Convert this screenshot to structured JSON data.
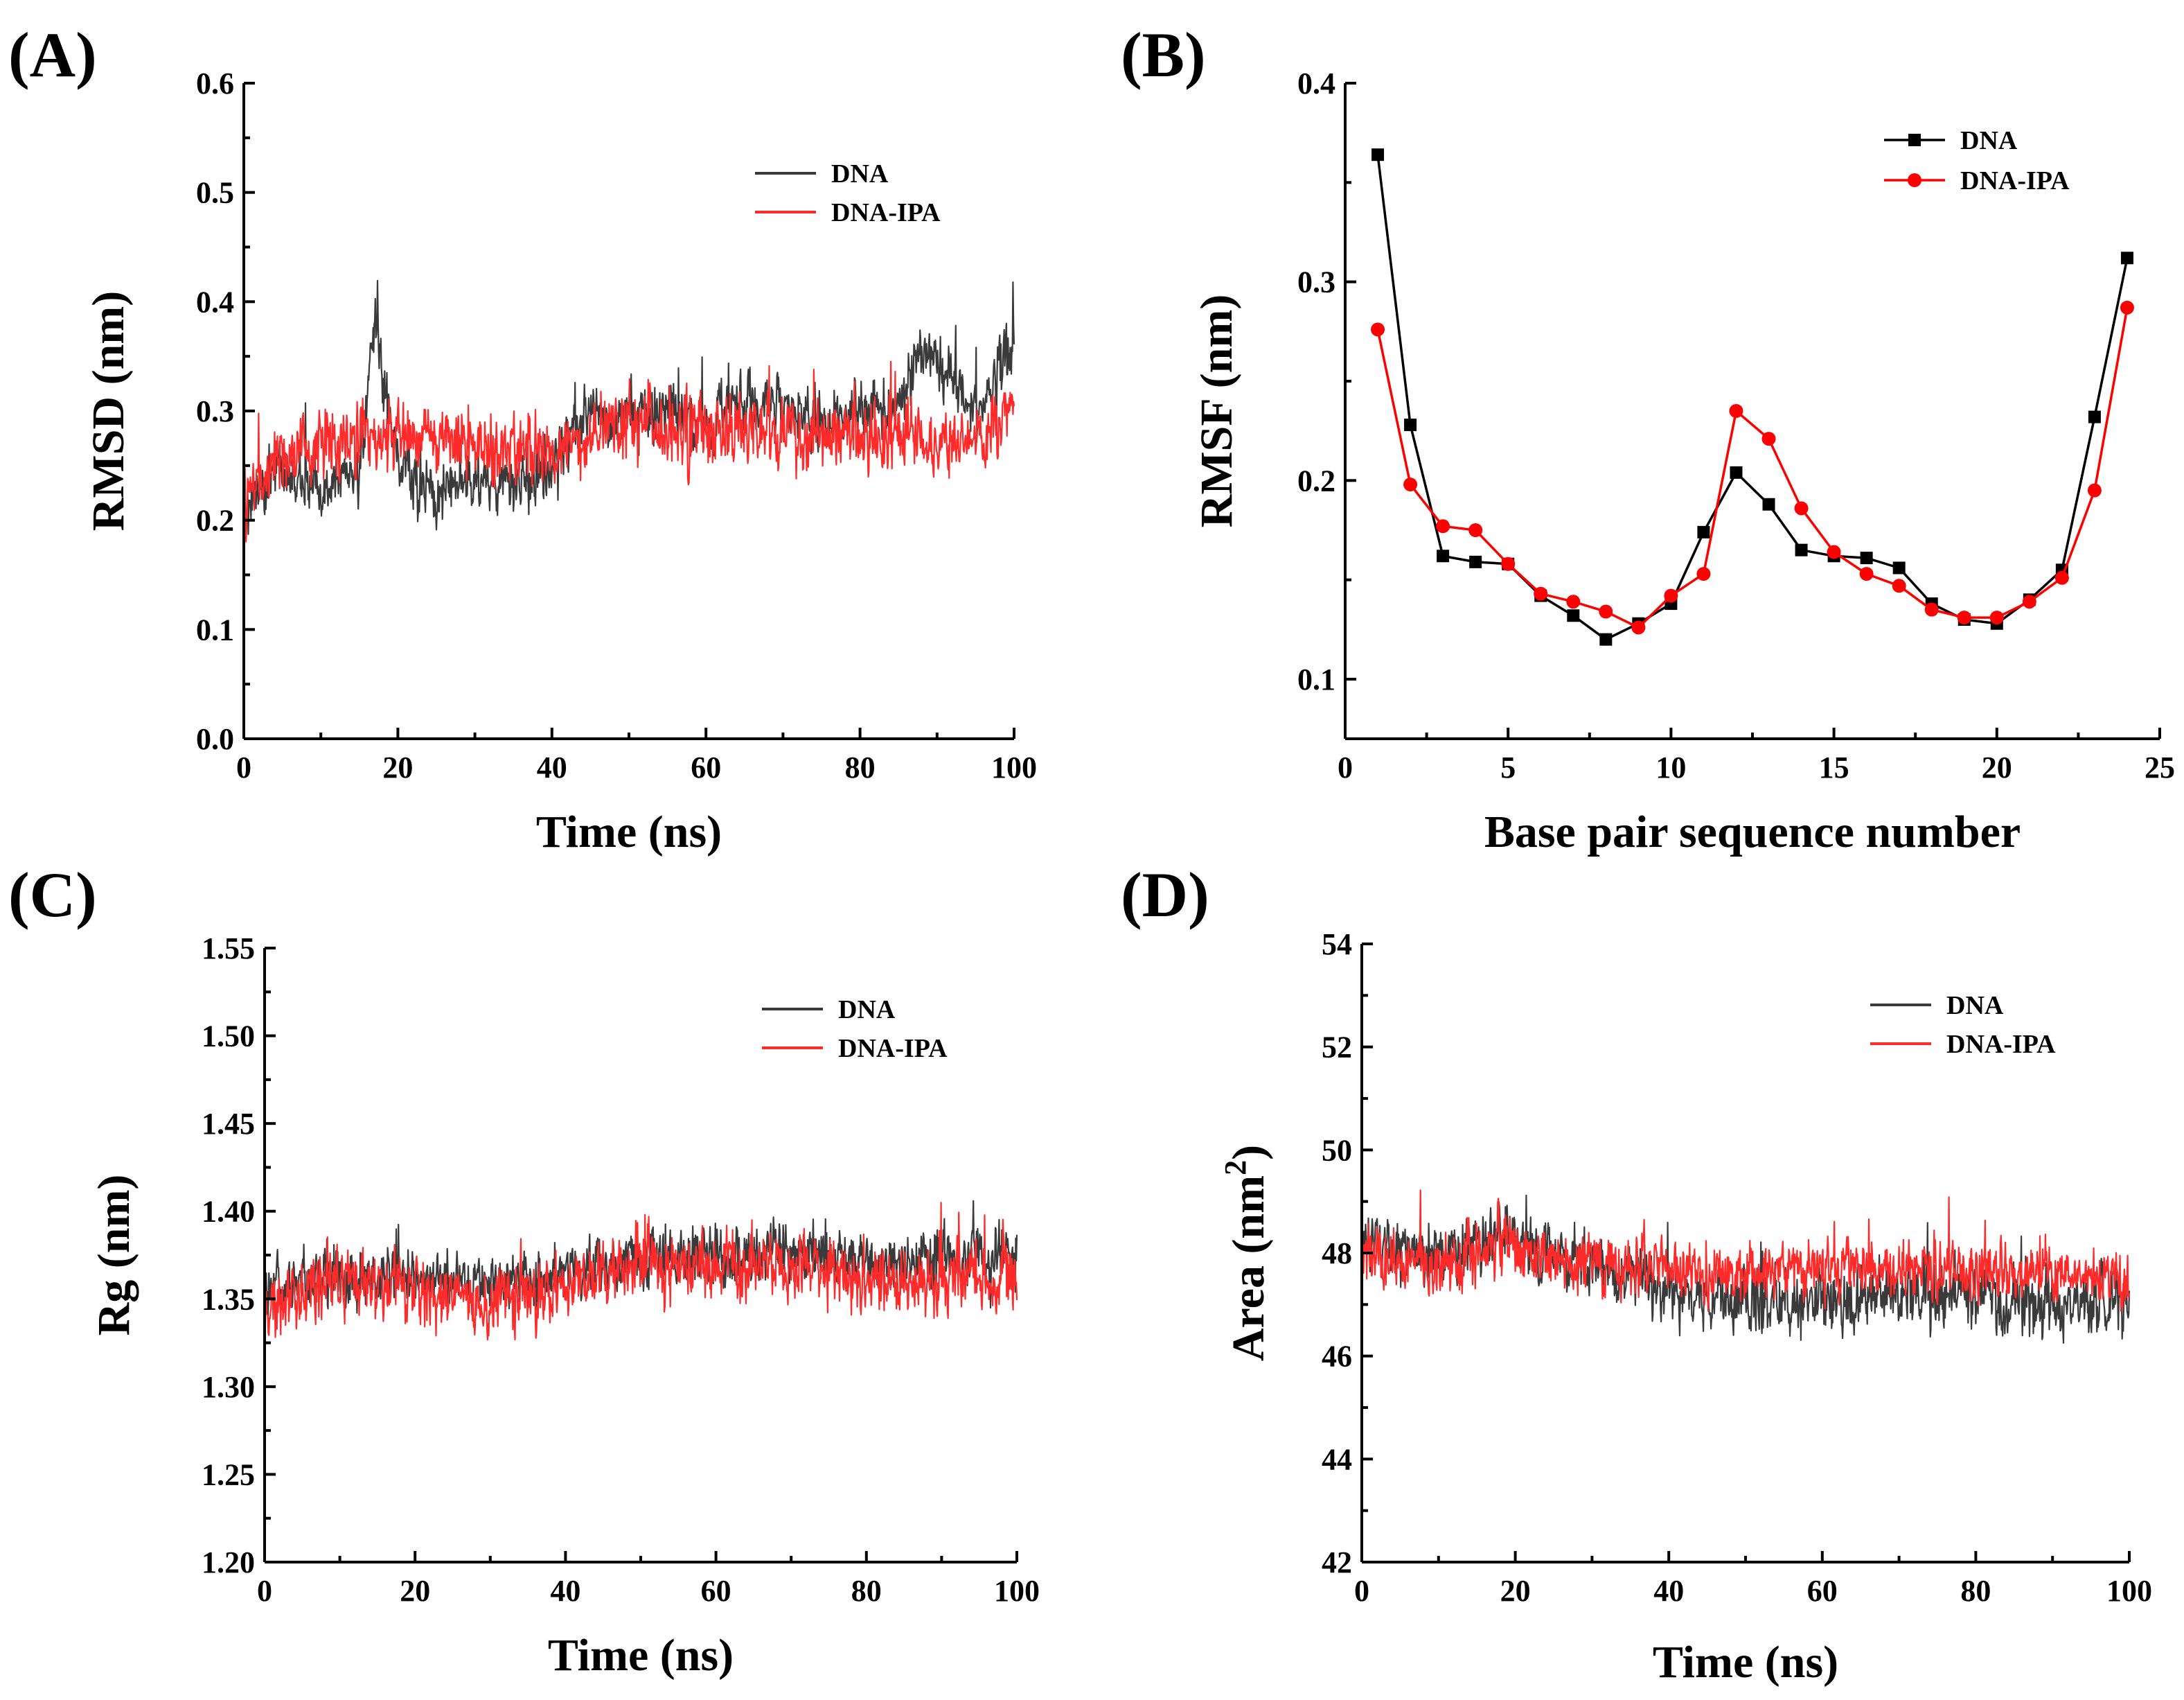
{
  "colors": {
    "dna": "#3a3a3a",
    "dna_ipa": "#ff2a2a"
  },
  "chart_data": [
    {
      "id": "A",
      "panel_label": "(A)",
      "type": "line",
      "xlabel": "Time (ns)",
      "ylabel": "RMSD (nm)",
      "ylabel_sup": "",
      "xlim": [
        0,
        100
      ],
      "ylim": [
        0.0,
        0.6
      ],
      "xticks": [
        0,
        20,
        40,
        60,
        80,
        100
      ],
      "xtick_labels": [
        "0",
        "20",
        "40",
        "60",
        "80",
        "100"
      ],
      "yticks": [
        0.0,
        0.1,
        0.2,
        0.3,
        0.4,
        0.5,
        0.6
      ],
      "ytick_labels": [
        "0.0",
        "0.1",
        "0.2",
        "0.3",
        "0.4",
        "0.5",
        "0.6"
      ],
      "legend": [
        "DNA",
        "DNA-IPA"
      ],
      "legend_position": "top-right",
      "series": [
        {
          "name": "DNA",
          "color": "#3a3a3a",
          "x": [
            0,
            5,
            10,
            15,
            17,
            20,
            25,
            30,
            35,
            40,
            45,
            50,
            55,
            60,
            65,
            70,
            75,
            80,
            85,
            88,
            90,
            95,
            100
          ],
          "values": [
            0.21,
            0.25,
            0.23,
            0.24,
            0.38,
            0.25,
            0.22,
            0.24,
            0.23,
            0.25,
            0.3,
            0.29,
            0.3,
            0.29,
            0.31,
            0.3,
            0.29,
            0.3,
            0.31,
            0.36,
            0.34,
            0.3,
            0.36
          ],
          "noise": [
            0.05,
            0.05,
            0.05,
            0.05,
            0.06,
            0.05,
            0.05,
            0.05,
            0.05,
            0.05,
            0.05,
            0.05,
            0.05,
            0.05,
            0.05,
            0.05,
            0.05,
            0.05,
            0.05,
            0.06,
            0.05,
            0.05,
            0.06
          ]
        },
        {
          "name": "DNA-IPA",
          "color": "#ff2a2a",
          "x": [
            0,
            5,
            10,
            20,
            30,
            40,
            45,
            50,
            60,
            70,
            80,
            90,
            95,
            100
          ],
          "values": [
            0.22,
            0.26,
            0.27,
            0.28,
            0.27,
            0.26,
            0.28,
            0.29,
            0.28,
            0.28,
            0.28,
            0.27,
            0.27,
            0.31
          ],
          "noise": [
            0.06,
            0.06,
            0.06,
            0.06,
            0.06,
            0.06,
            0.06,
            0.06,
            0.06,
            0.06,
            0.06,
            0.05,
            0.05,
            0.06
          ]
        }
      ]
    },
    {
      "id": "B",
      "panel_label": "(B)",
      "type": "line",
      "xlabel": "Base pair sequence number",
      "ylabel": "RMSF (nm)",
      "ylabel_sup": "",
      "xlim": [
        0,
        25
      ],
      "ylim": [
        0.07,
        0.4
      ],
      "xticks": [
        0,
        5,
        10,
        15,
        20,
        25
      ],
      "xtick_labels": [
        "0",
        "5",
        "10",
        "15",
        "20",
        "25"
      ],
      "yticks": [
        0.1,
        0.2,
        0.3,
        0.4
      ],
      "ytick_labels": [
        "0.1",
        "0.2",
        "0.3",
        "0.4"
      ],
      "legend": [
        "DNA",
        "DNA-IPA"
      ],
      "legend_position": "top-right",
      "series": [
        {
          "name": "DNA",
          "marker": "square",
          "color": "#000000",
          "x": [
            1,
            2,
            3,
            4,
            5,
            6,
            7,
            8,
            9,
            10,
            11,
            12,
            13,
            14,
            15,
            16,
            17,
            18,
            19,
            20,
            21,
            22,
            23,
            24
          ],
          "values": [
            0.364,
            0.228,
            0.162,
            0.159,
            0.158,
            0.142,
            0.132,
            0.12,
            0.128,
            0.138,
            0.174,
            0.204,
            0.188,
            0.165,
            0.162,
            0.161,
            0.156,
            0.138,
            0.13,
            0.128,
            0.14,
            0.155,
            0.232,
            0.312
          ]
        },
        {
          "name": "DNA-IPA",
          "marker": "circle",
          "color": "#ff0000",
          "x": [
            1,
            2,
            3,
            4,
            5,
            6,
            7,
            8,
            9,
            10,
            11,
            12,
            13,
            14,
            15,
            16,
            17,
            18,
            19,
            20,
            21,
            22,
            23,
            24
          ],
          "values": [
            0.276,
            0.198,
            0.177,
            0.175,
            0.158,
            0.143,
            0.139,
            0.134,
            0.126,
            0.142,
            0.153,
            0.235,
            0.221,
            0.186,
            0.164,
            0.153,
            0.147,
            0.135,
            0.131,
            0.131,
            0.139,
            0.151,
            0.195,
            0.287
          ]
        }
      ]
    },
    {
      "id": "C",
      "panel_label": "(C)",
      "type": "line",
      "xlabel": "Time (ns)",
      "ylabel": "Rg (nm)",
      "ylabel_sup": "",
      "xlim": [
        0,
        100
      ],
      "ylim": [
        1.2,
        1.55
      ],
      "xticks": [
        0,
        20,
        40,
        60,
        80,
        100
      ],
      "xtick_labels": [
        "0",
        "20",
        "40",
        "60",
        "80",
        "100"
      ],
      "yticks": [
        1.2,
        1.25,
        1.3,
        1.35,
        1.4,
        1.45,
        1.5,
        1.55
      ],
      "ytick_labels": [
        "1.20",
        "1.25",
        "1.30",
        "1.35",
        "1.40",
        "1.45",
        "1.50",
        "1.55"
      ],
      "legend": [
        "DNA",
        "DNA-IPA"
      ],
      "legend_position": "top-right",
      "series": [
        {
          "name": "DNA",
          "color": "#3a3a3a",
          "x": [
            0,
            10,
            20,
            30,
            40,
            50,
            60,
            70,
            80,
            90,
            100
          ],
          "values": [
            1.352,
            1.365,
            1.36,
            1.358,
            1.363,
            1.375,
            1.372,
            1.378,
            1.37,
            1.372,
            1.375
          ],
          "noise": [
            0.03,
            0.03,
            0.03,
            0.03,
            0.03,
            0.03,
            0.03,
            0.03,
            0.03,
            0.03,
            0.03
          ]
        },
        {
          "name": "DNA-IPA",
          "color": "#ff2a2a",
          "x": [
            0,
            10,
            20,
            30,
            40,
            50,
            60,
            70,
            80,
            90,
            100
          ],
          "values": [
            1.345,
            1.36,
            1.355,
            1.348,
            1.355,
            1.372,
            1.368,
            1.368,
            1.36,
            1.362,
            1.365
          ],
          "noise": [
            0.035,
            0.035,
            0.035,
            0.035,
            0.035,
            0.035,
            0.035,
            0.035,
            0.035,
            0.035,
            0.035
          ]
        }
      ]
    },
    {
      "id": "D",
      "panel_label": "(D)",
      "type": "line",
      "xlabel": "Time (ns)",
      "ylabel": "Area (nm",
      "ylabel_sup": "2",
      "ylabel_suffix": ")",
      "xlim": [
        0,
        100
      ],
      "ylim": [
        42,
        54
      ],
      "xticks": [
        0,
        20,
        40,
        60,
        80,
        100
      ],
      "xtick_labels": [
        "0",
        "20",
        "40",
        "60",
        "80",
        "100"
      ],
      "yticks": [
        42,
        44,
        46,
        48,
        50,
        52,
        54
      ],
      "ytick_labels": [
        "42",
        "44",
        "46",
        "48",
        "50",
        "52",
        "54"
      ],
      "legend": [
        "DNA",
        "DNA-IPA"
      ],
      "legend_position": "top-right",
      "series": [
        {
          "name": "DNA",
          "color": "#3a3a3a",
          "x": [
            0,
            10,
            18,
            20,
            30,
            40,
            50,
            60,
            70,
            80,
            90,
            100
          ],
          "values": [
            48.2,
            48.0,
            48.4,
            48.2,
            47.7,
            47.3,
            47.0,
            47.1,
            47.2,
            47.1,
            47.0,
            47.0
          ],
          "noise": [
            1.1,
            1.1,
            1.2,
            1.1,
            1.1,
            1.1,
            1.2,
            1.2,
            1.2,
            1.2,
            1.2,
            1.2
          ]
        },
        {
          "name": "DNA-IPA",
          "color": "#ff2a2a",
          "x": [
            0,
            10,
            18,
            20,
            30,
            40,
            50,
            60,
            70,
            80,
            90,
            100
          ],
          "values": [
            48.0,
            47.6,
            48.4,
            48.0,
            47.8,
            47.7,
            47.6,
            47.7,
            47.7,
            47.6,
            47.6,
            47.5
          ],
          "noise": [
            1.1,
            1.1,
            1.3,
            1.1,
            1.0,
            1.0,
            1.0,
            1.0,
            1.0,
            1.0,
            1.0,
            1.0
          ]
        }
      ]
    }
  ]
}
